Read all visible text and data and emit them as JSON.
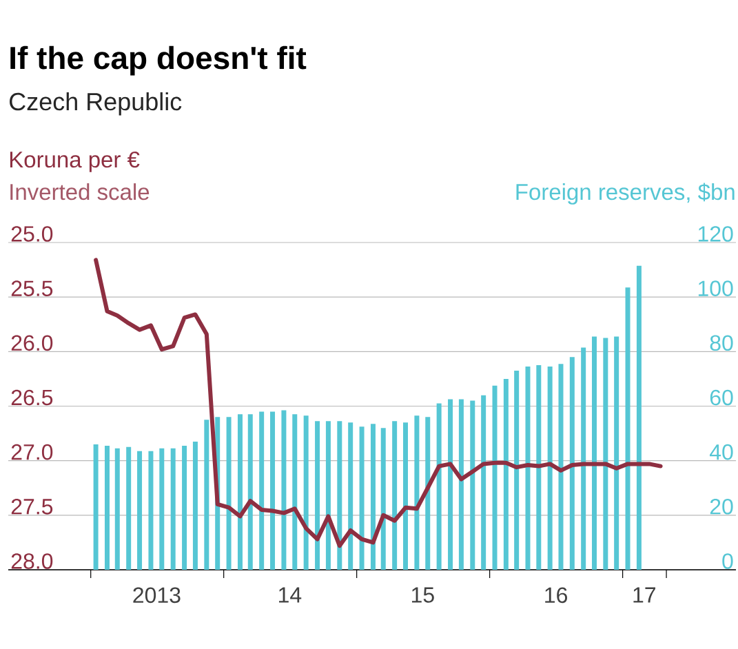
{
  "chart_data": {
    "type": "bar",
    "title": "If the cap doesn't fit",
    "subtitle": "Czech Republic",
    "ylabel": "Koruna per €",
    "y2label": "Foreign reserves, $bn",
    "annotations": [
      "Inverted scale"
    ],
    "x": [
      "2013-01-15",
      "2013-02-15",
      "2013-03-15",
      "2013-04-15",
      "2013-05-15",
      "2013-06-15",
      "2013-07-15",
      "2013-08-15",
      "2013-09-15",
      "2013-10-15",
      "2013-11-15",
      "2013-12-15",
      "2014-01-15",
      "2014-02-15",
      "2014-03-15",
      "2014-04-15",
      "2014-05-15",
      "2014-06-15",
      "2014-07-15",
      "2014-08-15",
      "2014-09-15",
      "2014-10-15",
      "2014-11-15",
      "2014-12-15",
      "2015-01-15",
      "2015-02-15",
      "2015-03-15",
      "2015-04-15",
      "2015-05-15",
      "2015-06-15",
      "2015-07-15",
      "2015-08-15",
      "2015-09-15",
      "2015-10-15",
      "2015-11-15",
      "2015-12-15",
      "2016-01-15",
      "2016-02-15",
      "2016-03-15",
      "2016-04-15",
      "2016-05-15",
      "2016-06-15",
      "2016-07-15",
      "2016-08-15",
      "2016-09-15",
      "2016-10-15",
      "2016-11-15",
      "2016-12-15",
      "2017-01-15",
      "2017-02-15"
    ],
    "series": [
      {
        "axis": "y2",
        "color": "#55c6d4",
        "values": [
          46,
          45.5,
          44.5,
          45,
          43.5,
          43.5,
          44.5,
          44.5,
          45.5,
          47,
          55,
          56,
          56,
          57,
          57,
          58,
          58,
          58.5,
          57,
          56.5,
          54.5,
          54.5,
          54.5,
          54,
          52.5,
          53.5,
          52,
          54.5,
          54,
          56.5,
          56,
          61,
          62.5,
          62.5,
          62,
          64,
          67.5,
          70,
          73,
          74.5,
          75,
          74.5,
          75.5,
          78,
          81.5,
          85.5,
          85,
          85.5,
          103.5,
          111.5
        ]
      },
      {
        "type": "line",
        "axis": "y",
        "color": "#8e2f41",
        "x": [
          "2013-01-15",
          "2013-02-15",
          "2013-03-15",
          "2013-04-15",
          "2013-05-15",
          "2013-06-15",
          "2013-07-15",
          "2013-08-15",
          "2013-09-15",
          "2013-10-15",
          "2013-11-15",
          "2013-12-15",
          "2014-01-15",
          "2014-02-15",
          "2014-03-15",
          "2014-04-15",
          "2014-05-15",
          "2014-06-15",
          "2014-07-15",
          "2014-08-15",
          "2014-09-15",
          "2014-10-15",
          "2014-11-15",
          "2014-12-15",
          "2015-01-15",
          "2015-02-15",
          "2015-03-15",
          "2015-04-15",
          "2015-05-15",
          "2015-06-15",
          "2015-07-15",
          "2015-08-15",
          "2015-09-15",
          "2015-10-15",
          "2015-11-15",
          "2015-12-15",
          "2016-01-15",
          "2016-02-15",
          "2016-03-15",
          "2016-04-15",
          "2016-05-15",
          "2016-06-15",
          "2016-07-15",
          "2016-08-15",
          "2016-09-15",
          "2016-10-15",
          "2016-11-15",
          "2016-12-15",
          "2017-01-15",
          "2017-02-15",
          "2017-03-15",
          "2017-04-15"
        ],
        "values": [
          25.16,
          25.63,
          25.67,
          25.74,
          25.8,
          25.76,
          25.98,
          25.95,
          25.69,
          25.66,
          25.84,
          27.4,
          27.43,
          27.51,
          27.37,
          27.45,
          27.46,
          27.48,
          27.44,
          27.62,
          27.72,
          27.51,
          27.78,
          27.64,
          27.72,
          27.75,
          27.5,
          27.55,
          27.43,
          27.44,
          27.25,
          27.05,
          27.03,
          27.17,
          27.1,
          27.03,
          27.02,
          27.02,
          27.06,
          27.04,
          27.05,
          27.03,
          27.09,
          27.04,
          27.03,
          27.03,
          27.03,
          27.07,
          27.03,
          27.03,
          27.03,
          27.05
        ]
      }
    ],
    "xlim": [
      "2012-05-19",
      "2017-11-08"
    ],
    "xticks": [
      {
        "value": "2013-01-01",
        "label": null
      },
      {
        "value": "2013-07-01",
        "label": "2013"
      },
      {
        "value": "2014-01-01",
        "label": null
      },
      {
        "value": "2014-07-01",
        "label": "14"
      },
      {
        "value": "2015-01-01",
        "label": null
      },
      {
        "value": "2015-07-01",
        "label": "15"
      },
      {
        "value": "2016-01-01",
        "label": null
      },
      {
        "value": "2016-07-01",
        "label": "16"
      },
      {
        "value": "2017-01-01",
        "label": null
      },
      {
        "value": "2017-03-01",
        "label": "17"
      },
      {
        "value": "2017-05-01",
        "label": null
      }
    ],
    "ylim": [
      28,
      25
    ],
    "yticks": [
      {
        "value": 25,
        "label": "25.0"
      },
      25.5,
      {
        "value": 26,
        "label": "26.0"
      },
      26.5,
      {
        "value": 27,
        "label": "27.0"
      },
      27.5,
      {
        "value": 28,
        "label": "28.0"
      }
    ],
    "y2lim": [
      0,
      120
    ],
    "y2ticks": [
      0,
      20,
      40,
      60,
      80,
      100,
      120
    ],
    "grid": "y"
  }
}
